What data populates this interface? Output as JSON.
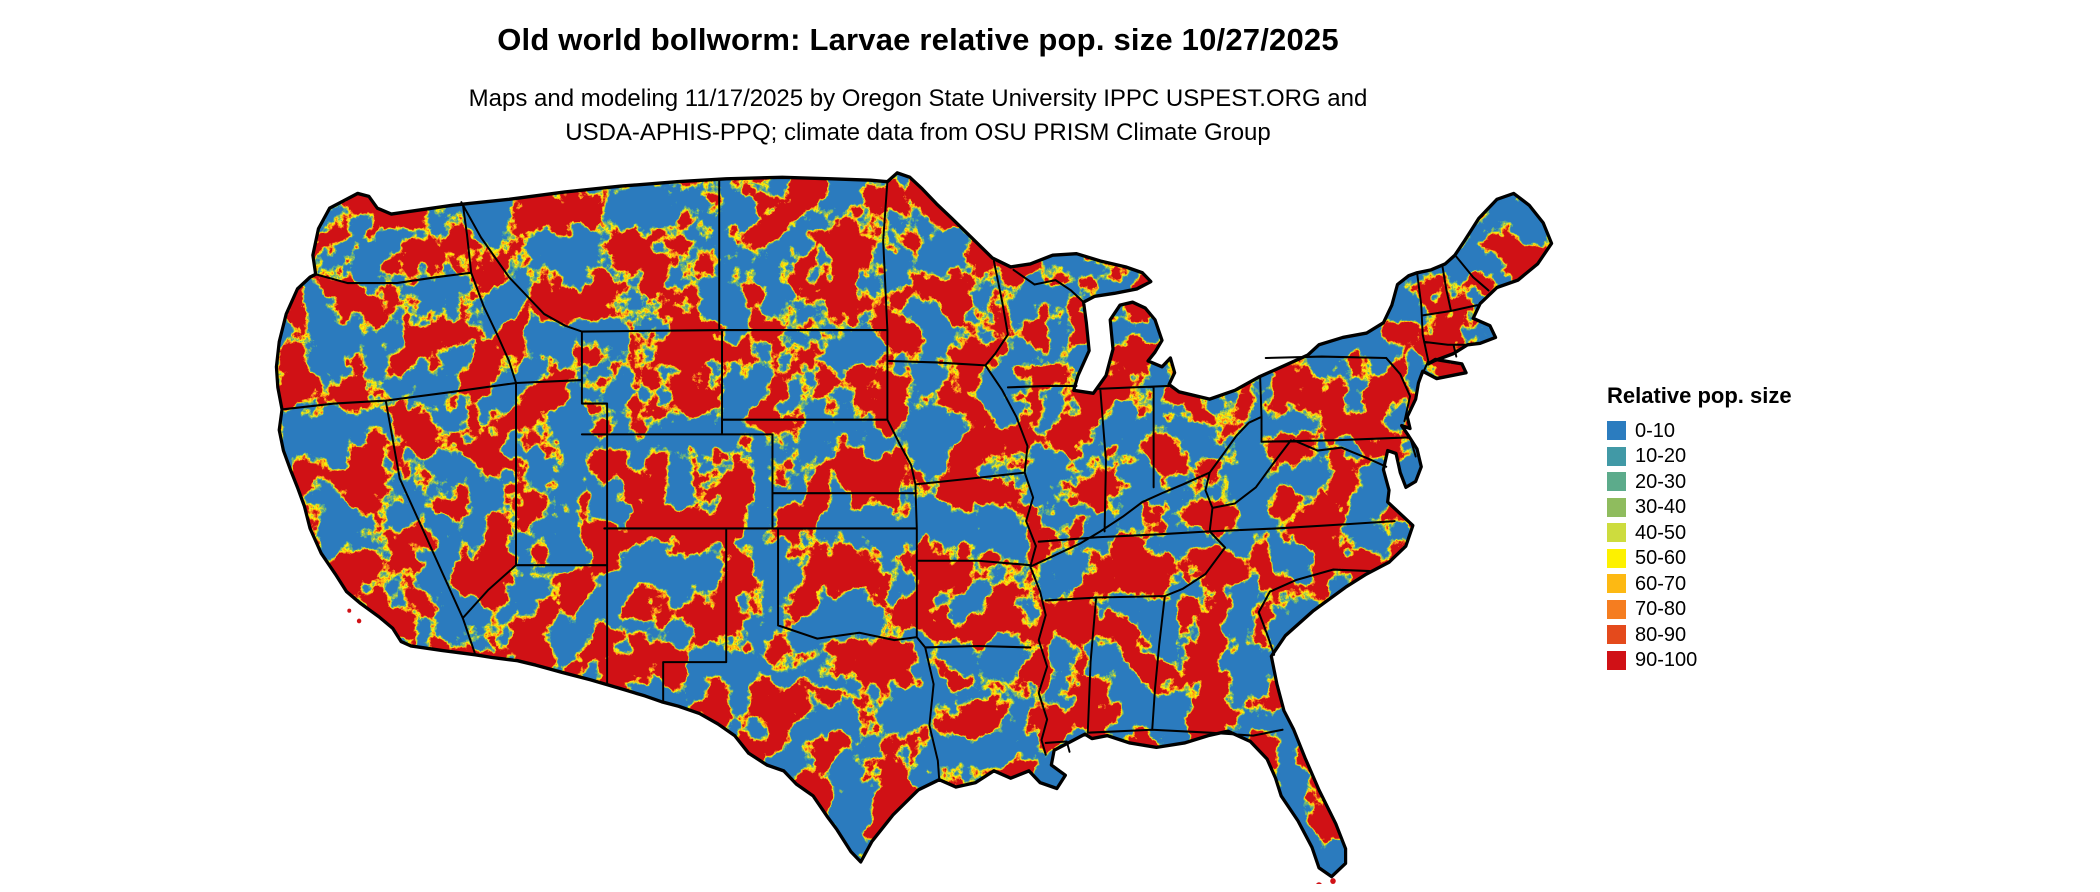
{
  "title": "Old world bollworm: Larvae relative pop. size 10/27/2025",
  "subtitle_line1": "Maps and modeling 11/17/2025 by Oregon State University IPPC USPEST.ORG and",
  "subtitle_line2": "USDA-APHIS-PPQ; climate data from OSU PRISM Climate Group",
  "map": {
    "alt": "Raster map of the contiguous United States showing modeled relative population size of old world bollworm larvae, mottled blue (low) through yellow and orange to red (high), with black state boundaries"
  },
  "legend": {
    "title": "Relative pop. size",
    "items": [
      {
        "label": "0-10",
        "color": "#2b7cbf"
      },
      {
        "label": "10-20",
        "color": "#4199a6"
      },
      {
        "label": "20-30",
        "color": "#5cab8b"
      },
      {
        "label": "30-40",
        "color": "#8fbc5e"
      },
      {
        "label": "40-50",
        "color": "#cddc3e"
      },
      {
        "label": "50-60",
        "color": "#fdf100"
      },
      {
        "label": "60-70",
        "color": "#fdb913"
      },
      {
        "label": "70-80",
        "color": "#f57d20"
      },
      {
        "label": "80-90",
        "color": "#e44a1c"
      },
      {
        "label": "90-100",
        "color": "#d01116"
      }
    ]
  }
}
